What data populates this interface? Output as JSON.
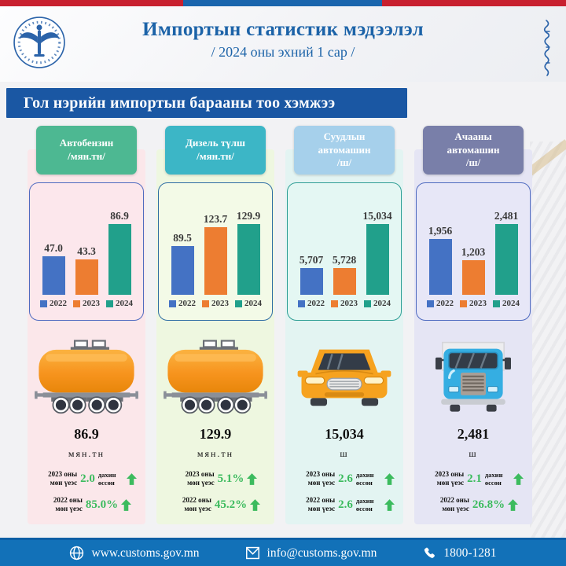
{
  "header": {
    "title": "Импортын статистик мэдээлэл",
    "subtitle": "/ 2024 оны эхний 1 сар /"
  },
  "section_title": "Гол нэрийн импортын барааны тоо хэмжээ",
  "legend_years": [
    "2022",
    "2023",
    "2024"
  ],
  "bar_colors": [
    "#4472C4",
    "#ED7D31",
    "#21A08B"
  ],
  "accent_colors": {
    "top_strip_red": "#C8202F",
    "top_strip_blue": "#1A65AD",
    "title_blue": "#1C63A8",
    "section_bar_blue": "#1A57A3",
    "footer_blue": "#1271B8",
    "growth_green": "#3CBB5E"
  },
  "chart_data": [
    {
      "type": "bar",
      "title": "Автобензин /мян.тн/",
      "categories": [
        "2022",
        "2023",
        "2024"
      ],
      "values": [
        47.0,
        43.3,
        86.9
      ],
      "value_labels": [
        "47.0",
        "43.3",
        "86.9"
      ],
      "ylim": [
        0,
        100
      ],
      "grid": false,
      "legend_position": "bottom"
    },
    {
      "type": "bar",
      "title": "Дизель түлш /мян.тн/",
      "categories": [
        "2022",
        "2023",
        "2024"
      ],
      "values": [
        89.5,
        123.7,
        129.9
      ],
      "value_labels": [
        "89.5",
        "123.7",
        "129.9"
      ],
      "ylim": [
        0,
        145
      ],
      "grid": false,
      "legend_position": "bottom"
    },
    {
      "type": "bar",
      "title": "Суудлын автомашин /ш/",
      "categories": [
        "2022",
        "2023",
        "2024"
      ],
      "values": [
        5707,
        5728,
        15034
      ],
      "value_labels": [
        "5,707",
        "5,728",
        "15,034"
      ],
      "ylim": [
        0,
        17000
      ],
      "grid": false,
      "legend_position": "bottom"
    },
    {
      "type": "bar",
      "title": "Ачааны автомашин /ш/",
      "categories": [
        "2022",
        "2023",
        "2024"
      ],
      "values": [
        1956,
        1203,
        2481
      ],
      "value_labels": [
        "1,956",
        "1,203",
        "2,481"
      ],
      "ylim": [
        0,
        2800
      ],
      "grid": false,
      "legend_position": "bottom"
    }
  ],
  "columns": [
    {
      "header_lines": [
        "Автобензин",
        "/мян.тн/"
      ],
      "chip_color": "#4DB892",
      "column_bg": "#FBE7EA",
      "card_bg": "#FCE7EC",
      "card_border": "#4F6BC0",
      "icon": "fuel-tank-wagon-icon",
      "big_value": "86.9",
      "unit": "мян.тн",
      "stats": [
        {
          "period": "2023 оны мөн үеэс",
          "value": "2.0",
          "note": "дахин өссөн",
          "direction": "up"
        },
        {
          "period": "2022 оны мөн үеэс",
          "value": "85.0%",
          "note": "",
          "direction": "up"
        }
      ]
    },
    {
      "header_lines": [
        "Дизель түлш",
        "/мян.тн/"
      ],
      "chip_color": "#3CB6C6",
      "column_bg": "#EEF7E0",
      "card_bg": "#F3FAE7",
      "card_border": "#2E6DA4",
      "icon": "fuel-tank-wagon-icon",
      "big_value": "129.9",
      "unit": "мян.тн",
      "stats": [
        {
          "period": "2023 оны мөн үеэс",
          "value": "5.1%",
          "note": "",
          "direction": "up"
        },
        {
          "period": "2022 оны мөн үеэс",
          "value": "45.2%",
          "note": "",
          "direction": "up"
        }
      ]
    },
    {
      "header_lines": [
        "Суудлын",
        "автомашин",
        "/ш/"
      ],
      "chip_color": "#A6D0EB",
      "column_bg": "#E3F4F2",
      "card_bg": "#E4F7F3",
      "card_border": "#2E9E95",
      "icon": "passenger-car-icon",
      "big_value": "15,034",
      "unit": "ш",
      "stats": [
        {
          "period": "2023 оны мөн үеэс",
          "value": "2.6",
          "note": "дахин өссөн",
          "direction": "up"
        },
        {
          "period": "2022 оны мөн үеэс",
          "value": "2.6",
          "note": "дахин өссөн",
          "direction": "up"
        }
      ]
    },
    {
      "header_lines": [
        "Ачааны",
        "автомашин",
        "/ш/"
      ],
      "chip_color": "#797FA9",
      "column_bg": "#E5E5F4",
      "card_bg": "#E7E7F7",
      "card_border": "#4F6BC0",
      "icon": "cargo-truck-icon",
      "big_value": "2,481",
      "unit": "ш",
      "stats": [
        {
          "period": "2023 оны мөн үеэс",
          "value": "2.1",
          "note": "дахин өссөн",
          "direction": "up"
        },
        {
          "period": "2022 оны мөн үеэс",
          "value": "26.8%",
          "note": "",
          "direction": "up"
        }
      ]
    }
  ],
  "footer": {
    "website": "www.customs.gov.mn",
    "email": "info@customs.gov.mn",
    "phone": "1800-1281"
  }
}
